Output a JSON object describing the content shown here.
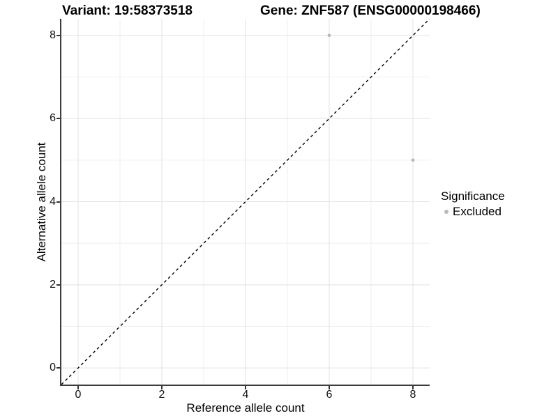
{
  "title": {
    "variant": "Variant: 19:58373518",
    "gene": "Gene: ZNF587 (ENSG00000198466)"
  },
  "legend": {
    "title": "Significance",
    "items": [
      {
        "label": "Excluded",
        "color": "#b9b9b9"
      }
    ]
  },
  "colors": {
    "axis_line": "#3c3c3c",
    "tick": "#333333",
    "tick_label": "#111111",
    "grid_major": "#e2e2e2",
    "grid_minor": "#efefef",
    "identity_line": "#000000",
    "point": "#b9b9b9"
  },
  "chart_data": {
    "type": "scatter",
    "title": "",
    "xlabel": "Reference allele count",
    "ylabel": "Alternative allele count",
    "xlim": [
      -0.4,
      8.4
    ],
    "ylim": [
      -0.4,
      8.4
    ],
    "x_ticks": [
      0,
      2,
      4,
      6,
      8
    ],
    "y_ticks": [
      0,
      2,
      4,
      6,
      8
    ],
    "x_minor_ticks": [
      1,
      3,
      5,
      7
    ],
    "y_minor_ticks": [
      1,
      3,
      5,
      7
    ],
    "grid": true,
    "legend_position": "right",
    "identity_line": {
      "slope": 1,
      "intercept": 0,
      "style": "dashed",
      "color": "#000000"
    },
    "series": [
      {
        "name": "Excluded",
        "color": "#b9b9b9",
        "points": [
          {
            "x": 6,
            "y": 8
          },
          {
            "x": 8,
            "y": 5
          }
        ]
      }
    ]
  }
}
